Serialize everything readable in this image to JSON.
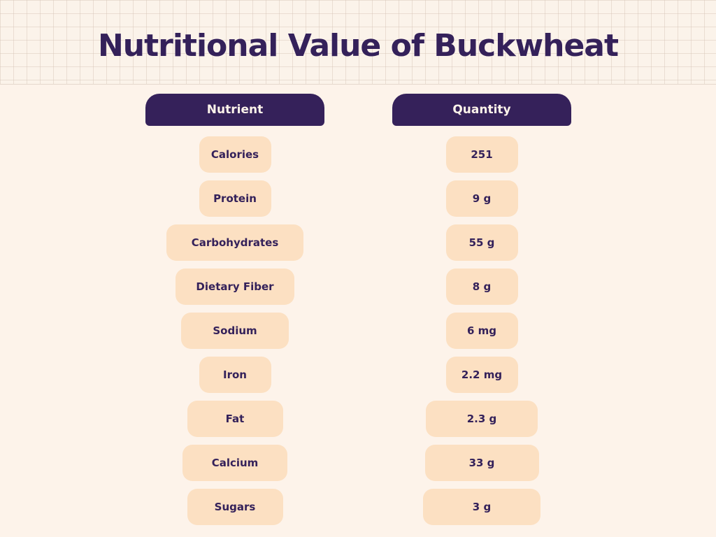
{
  "title": "Nutritional Value of Buckwheat",
  "table": {
    "headers": {
      "nutrient": "Nutrient",
      "quantity": "Quantity"
    },
    "rows": [
      {
        "nutrient": "Calories",
        "quantity": "251"
      },
      {
        "nutrient": "Protein",
        "quantity": "9 g"
      },
      {
        "nutrient": "Carbohydrates",
        "quantity": "55 g"
      },
      {
        "nutrient": "Dietary Fiber",
        "quantity": "8 g"
      },
      {
        "nutrient": "Sodium",
        "quantity": "6 mg"
      },
      {
        "nutrient": "Iron",
        "quantity": "2.2 mg"
      },
      {
        "nutrient": "Fat",
        "quantity": "2.3 g"
      },
      {
        "nutrient": "Calcium",
        "quantity": "33 g"
      },
      {
        "nutrient": "Sugars",
        "quantity": "3 g"
      }
    ]
  },
  "colors": {
    "background": "#fdf3ea",
    "header_pill": "#35215a",
    "cell_pill": "#fce0c2",
    "text_dark": "#34215a"
  }
}
